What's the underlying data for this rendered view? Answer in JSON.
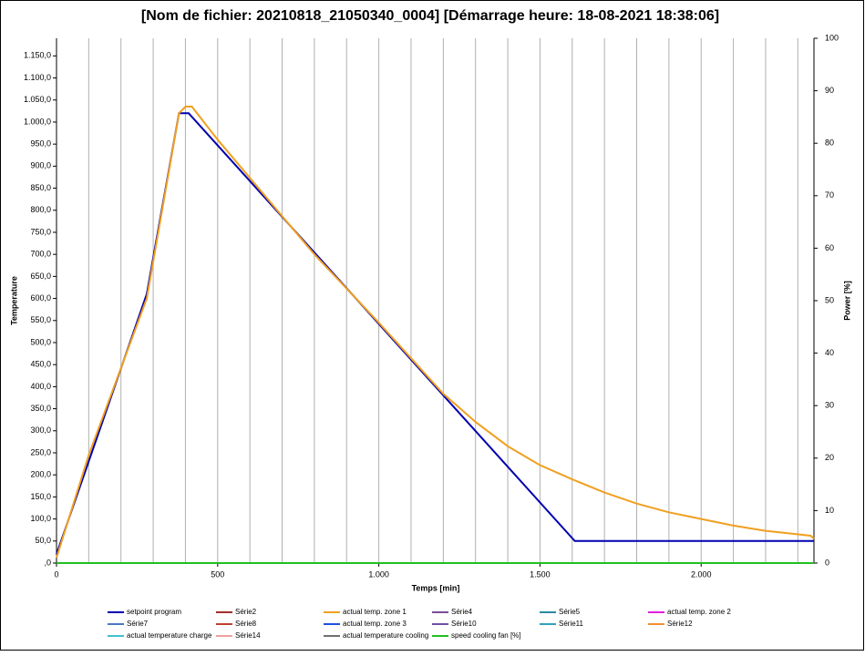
{
  "chart_data": {
    "type": "line",
    "title": "[Nom de fichier: 20210818_21050340_0004]   [Démarrage heure: 18-08-2021 18:38:06]",
    "xlabel": "Temps [min]",
    "ylabel": "Temperature",
    "y2label": "Power [%]",
    "xlim": [
      0,
      2350
    ],
    "ylim": [
      0,
      1190
    ],
    "y2lim": [
      0,
      100
    ],
    "xticks": [
      0,
      500,
      {
        "value": 1000,
        "label": "1.000"
      },
      {
        "value": 1500,
        "label": "1.500"
      },
      {
        "value": 2000,
        "label": "2.000"
      }
    ],
    "xgrid": [
      100,
      200,
      300,
      400,
      500,
      600,
      700,
      800,
      900,
      1000,
      1100,
      1200,
      1300,
      1400,
      1500,
      1600,
      1700,
      1800,
      1900,
      2000,
      2100,
      2200,
      2300
    ],
    "yticks": [
      {
        "value": 0,
        "label": ",0"
      },
      {
        "value": 50,
        "label": "50,0"
      },
      {
        "value": 100,
        "label": "100,0"
      },
      {
        "value": 150,
        "label": "150,0"
      },
      {
        "value": 200,
        "label": "200,0"
      },
      {
        "value": 250,
        "label": "250,0"
      },
      {
        "value": 300,
        "label": "300,0"
      },
      {
        "value": 350,
        "label": "350,0"
      },
      {
        "value": 400,
        "label": "400,0"
      },
      {
        "value": 450,
        "label": "450,0"
      },
      {
        "value": 500,
        "label": "500,0"
      },
      {
        "value": 550,
        "label": "550,0"
      },
      {
        "value": 600,
        "label": "600,0"
      },
      {
        "value": 650,
        "label": "650,0"
      },
      {
        "value": 700,
        "label": "700,0"
      },
      {
        "value": 750,
        "label": "750,0"
      },
      {
        "value": 800,
        "label": "800,0"
      },
      {
        "value": 850,
        "label": "850,0"
      },
      {
        "value": 900,
        "label": "900,0"
      },
      {
        "value": 950,
        "label": "950,0"
      },
      {
        "value": 1000,
        "label": "1.000,0"
      },
      {
        "value": 1050,
        "label": "1.050,0"
      },
      {
        "value": 1100,
        "label": "1.100,0"
      },
      {
        "value": 1150,
        "label": "1.150,0"
      }
    ],
    "y2ticks": [
      0,
      10,
      20,
      30,
      40,
      50,
      60,
      70,
      80,
      90,
      100
    ],
    "series": [
      {
        "name": "setpoint program",
        "color": "#0000b0",
        "x": [
          0,
          280,
          380,
          410,
          1608,
          2350
        ],
        "values": [
          20,
          610,
          1020,
          1020,
          50,
          50
        ]
      },
      {
        "name": "Série2",
        "color": "#a0302a"
      },
      {
        "name": "actual temp. zone 1",
        "color": "#f0a020",
        "x": [
          0,
          100,
          280,
          380,
          400,
          420,
          500,
          800,
          1000,
          1200,
          1300,
          1400,
          1500,
          1600,
          1700,
          1800,
          1900,
          2000,
          2100,
          2200,
          2340,
          2350
        ],
        "values": [
          12,
          245,
          600,
          1020,
          1035,
          1035,
          960,
          700,
          545,
          384,
          320,
          265,
          222,
          190,
          160,
          135,
          115,
          100,
          85,
          73,
          62,
          55
        ]
      },
      {
        "name": "Série4",
        "color": "#7a4f9a"
      },
      {
        "name": "Série5",
        "color": "#2a8aa0"
      },
      {
        "name": "actual temp. zone 2",
        "color": "#e020e0"
      },
      {
        "name": "Série7",
        "color": "#4a7ac0"
      },
      {
        "name": "Série8",
        "color": "#c04030"
      },
      {
        "name": "actual temp. zone 3",
        "color": "#2050e0"
      },
      {
        "name": "Série10",
        "color": "#7050a0"
      },
      {
        "name": "Série11",
        "color": "#30a0c0"
      },
      {
        "name": "Série12",
        "color": "#f09030"
      },
      {
        "name": "actual temperature charge",
        "color": "#40c0d0"
      },
      {
        "name": "Série14",
        "color": "#f0a0a0"
      },
      {
        "name": "actual temperature cooling",
        "color": "#707070"
      },
      {
        "name": "speed cooling fan [%]",
        "color": "#20c020",
        "axis": "y2",
        "x": [
          0,
          2350
        ],
        "values": [
          0,
          0
        ]
      }
    ]
  }
}
